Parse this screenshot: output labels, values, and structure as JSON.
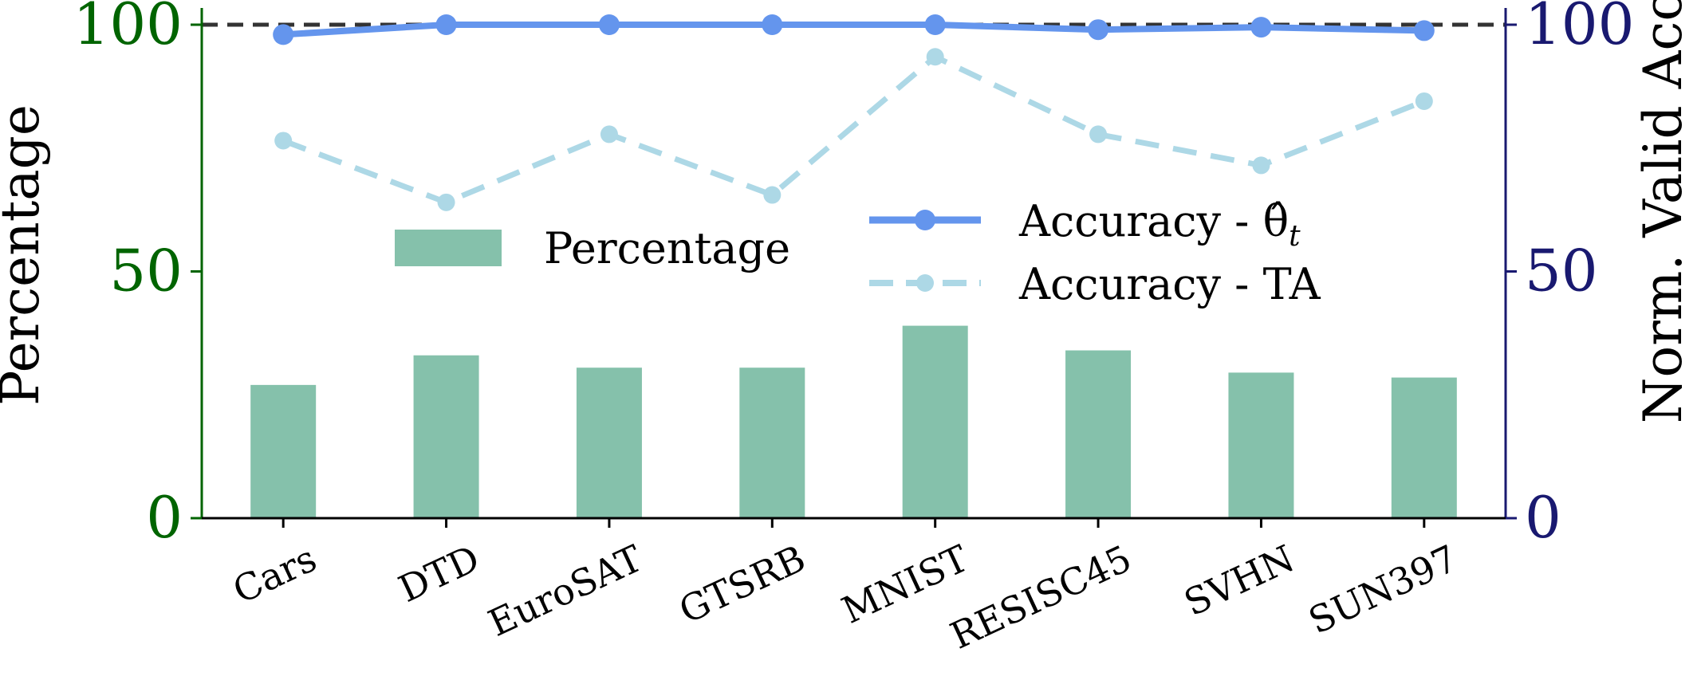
{
  "colors": {
    "bar": "#85c1ab",
    "accuracy_theta": "#6495ed",
    "accuracy_ta": "#add8e6",
    "left_axis": "#006400",
    "right_axis": "#191970",
    "reference_line": "#333333",
    "axis": "#000000"
  },
  "chart_data": {
    "type": "bar",
    "categories": [
      "Cars",
      "DTD",
      "EuroSAT",
      "GTSRB",
      "MNIST",
      "RESISC45",
      "SVHN",
      "SUN397"
    ],
    "bars": {
      "name": "Percentage",
      "values": [
        27,
        33,
        30.5,
        30.5,
        39,
        34,
        29.5,
        28.5
      ]
    },
    "lines": [
      {
        "name": "Accuracy - θ̂",
        "name_subscript": "t",
        "style": "solid",
        "values": [
          98,
          100,
          100,
          100,
          100,
          99,
          99.5,
          98.8
        ]
      },
      {
        "name": "Accuracy - TA",
        "style": "dashed",
        "values": [
          76.5,
          64,
          77.8,
          65.5,
          93.5,
          77.8,
          71.5,
          84.5
        ]
      }
    ],
    "reference_line": {
      "y": 100,
      "style": "dashed"
    },
    "ylabel_left": "Percentage",
    "ylabel_right": "Norm. Valid Acc.",
    "ylim_left": [
      0,
      100
    ],
    "ylim_right": [
      0,
      100
    ],
    "yticks_left": [
      "0",
      "50",
      "100"
    ],
    "yticks_right": [
      "0",
      "50",
      "100"
    ],
    "legend": [
      {
        "label": "Percentage",
        "position": "left-middle"
      },
      {
        "label": "Accuracy - θ̂",
        "subscript": "t",
        "position": "right-middle"
      },
      {
        "label": "Accuracy - TA",
        "position": "right-middle"
      }
    ],
    "grid": false
  }
}
